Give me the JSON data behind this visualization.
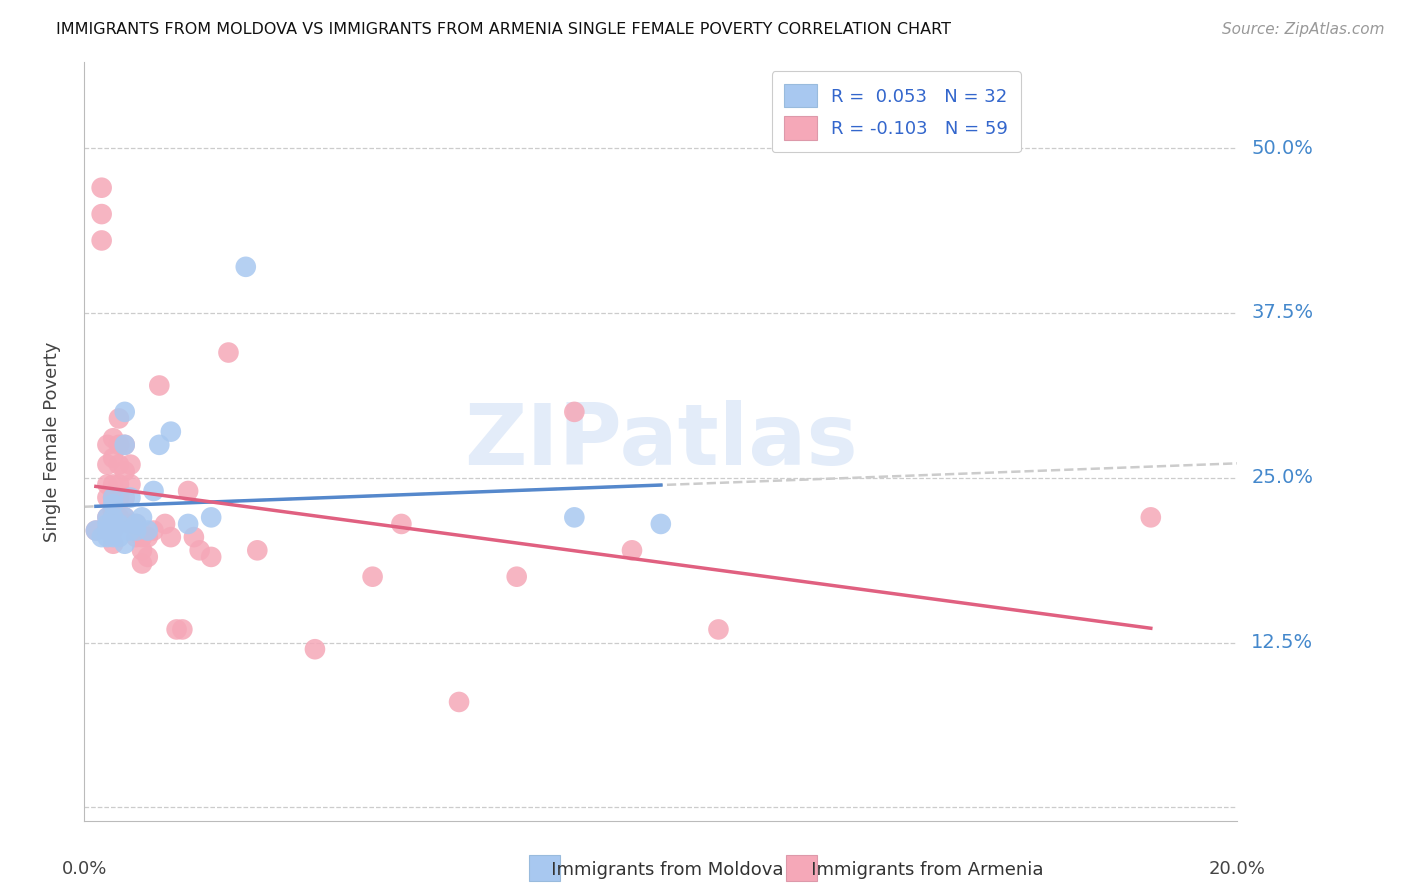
{
  "title": "IMMIGRANTS FROM MOLDOVA VS IMMIGRANTS FROM ARMENIA SINGLE FEMALE POVERTY CORRELATION CHART",
  "source": "Source: ZipAtlas.com",
  "ylabel": "Single Female Poverty",
  "y_ticks": [
    0.0,
    0.125,
    0.25,
    0.375,
    0.5
  ],
  "y_tick_labels": [
    "",
    "12.5%",
    "25.0%",
    "37.5%",
    "50.0%"
  ],
  "xlim": [
    0.0,
    0.2
  ],
  "ylim": [
    -0.01,
    0.565
  ],
  "legend_R_moldova": "0.053",
  "legend_N_moldova": "32",
  "legend_R_armenia": "-0.103",
  "legend_N_armenia": "59",
  "color_moldova": "#a8c8f0",
  "color_armenia": "#f5a8b8",
  "color_moldova_line": "#5588cc",
  "color_armenia_line": "#e06080",
  "watermark": "ZIPatlas",
  "moldova_x": [
    0.002,
    0.003,
    0.004,
    0.004,
    0.004,
    0.004,
    0.005,
    0.005,
    0.005,
    0.005,
    0.005,
    0.006,
    0.006,
    0.006,
    0.007,
    0.007,
    0.007,
    0.007,
    0.008,
    0.008,
    0.009,
    0.009,
    0.01,
    0.011,
    0.012,
    0.013,
    0.015,
    0.018,
    0.022,
    0.028,
    0.085,
    0.1
  ],
  "moldova_y": [
    0.21,
    0.205,
    0.205,
    0.21,
    0.215,
    0.22,
    0.205,
    0.21,
    0.22,
    0.23,
    0.235,
    0.205,
    0.21,
    0.215,
    0.2,
    0.22,
    0.275,
    0.3,
    0.21,
    0.235,
    0.21,
    0.215,
    0.22,
    0.21,
    0.24,
    0.275,
    0.285,
    0.215,
    0.22,
    0.41,
    0.22,
    0.215
  ],
  "armenia_x": [
    0.002,
    0.003,
    0.003,
    0.003,
    0.004,
    0.004,
    0.004,
    0.004,
    0.004,
    0.004,
    0.005,
    0.005,
    0.005,
    0.005,
    0.005,
    0.005,
    0.005,
    0.005,
    0.006,
    0.006,
    0.006,
    0.006,
    0.006,
    0.006,
    0.007,
    0.007,
    0.007,
    0.007,
    0.008,
    0.008,
    0.008,
    0.009,
    0.009,
    0.01,
    0.01,
    0.01,
    0.011,
    0.011,
    0.012,
    0.013,
    0.014,
    0.015,
    0.016,
    0.017,
    0.018,
    0.019,
    0.02,
    0.022,
    0.025,
    0.03,
    0.04,
    0.05,
    0.055,
    0.065,
    0.075,
    0.085,
    0.095,
    0.11,
    0.185
  ],
  "armenia_y": [
    0.21,
    0.45,
    0.47,
    0.43,
    0.275,
    0.26,
    0.245,
    0.235,
    0.22,
    0.21,
    0.28,
    0.265,
    0.245,
    0.235,
    0.225,
    0.215,
    0.21,
    0.2,
    0.295,
    0.275,
    0.26,
    0.245,
    0.235,
    0.22,
    0.275,
    0.255,
    0.235,
    0.22,
    0.26,
    0.245,
    0.215,
    0.215,
    0.205,
    0.205,
    0.195,
    0.185,
    0.205,
    0.19,
    0.21,
    0.32,
    0.215,
    0.205,
    0.135,
    0.135,
    0.24,
    0.205,
    0.195,
    0.19,
    0.345,
    0.195,
    0.12,
    0.175,
    0.215,
    0.08,
    0.175,
    0.3,
    0.195,
    0.135,
    0.22
  ]
}
